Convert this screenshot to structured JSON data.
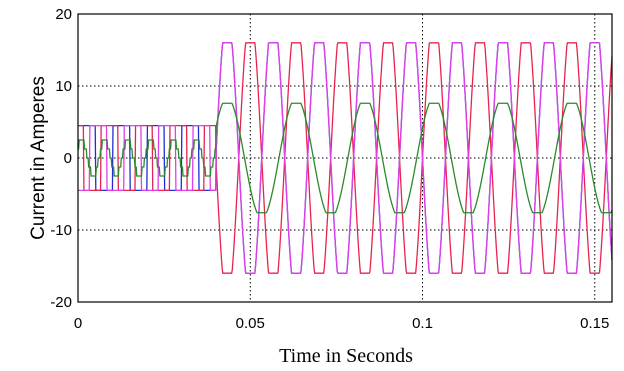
{
  "chart_data": {
    "type": "line",
    "xlabel": "Time in Seconds",
    "ylabel": "Current in Amperes",
    "xlim": [
      0,
      0.155
    ],
    "ylim": [
      -20,
      20
    ],
    "xticks": [
      "0",
      "0.05",
      "0.1",
      "0.15"
    ],
    "yticks": [
      "20",
      "10",
      "0",
      "-10",
      "-20"
    ],
    "grid": true,
    "legend": "none",
    "series": [
      {
        "color": "#1f2fd6",
        "desc": "multilevel-staircase current, amplitude 16 A after step",
        "pre_amp": 4.5,
        "post_amp": 16,
        "phase_deg": 0
      },
      {
        "color": "#e8234e",
        "desc": "current, amplitude 16 A after step",
        "pre_amp": 4.5,
        "post_amp": 16,
        "phase_deg": 120
      },
      {
        "color": "#e040e8",
        "desc": "current, amplitude 16 A after step",
        "pre_amp": 4.5,
        "post_amp": 16,
        "phase_deg": 240
      },
      {
        "color": "#2a8a2a",
        "desc": "neutral/low current, amplitude ~8 A after step",
        "pre_amp": 2.5,
        "post_amp": 8,
        "phase_deg": 30
      }
    ],
    "step_time": 0.04,
    "frequency_hz": 50
  }
}
